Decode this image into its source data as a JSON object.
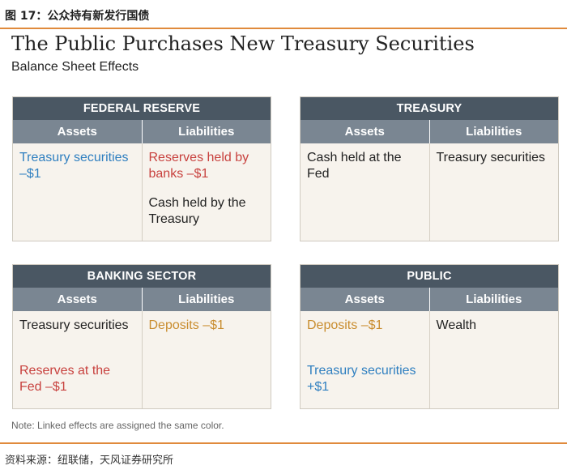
{
  "figure_label": "图 17：公众持有新发行国债",
  "title": "The Public Purchases New Treasury Securities",
  "subtitle": "Balance Sheet Effects",
  "note": "Note: Linked effects are assigned the same color.",
  "source": "资料来源：纽联储，天风证券研究所",
  "colors": {
    "blue": "#2f7fc0",
    "red": "#c8413e",
    "gold": "#c98d2f",
    "header_dark": "#4a5763",
    "header_light": "#7a8692",
    "accent": "#e08a3c"
  },
  "ledgers": {
    "fed": {
      "name": "FEDERAL RESERVE",
      "assets_label": "Assets",
      "liabilities_label": "Liabilities",
      "assets": [
        "Treasury securities –$1"
      ],
      "liabilities": [
        "Reserves held by banks –$1",
        "Cash held by the Treasury"
      ]
    },
    "treasury": {
      "name": "TREASURY",
      "assets_label": "Assets",
      "liabilities_label": "Liabilities",
      "assets": [
        "Cash held at the Fed"
      ],
      "liabilities": [
        "Treasury securities"
      ]
    },
    "banking": {
      "name": "BANKING SECTOR",
      "assets_label": "Assets",
      "liabilities_label": "Liabilities",
      "assets": [
        "Treasury securities",
        "Reserves at the Fed –$1"
      ],
      "liabilities": [
        "Deposits –$1"
      ]
    },
    "public": {
      "name": "PUBLIC",
      "assets_label": "Assets",
      "liabilities_label": "Liabilities",
      "assets": [
        "Deposits –$1",
        "Treasury securities +$1"
      ],
      "liabilities": [
        "Wealth"
      ]
    }
  }
}
